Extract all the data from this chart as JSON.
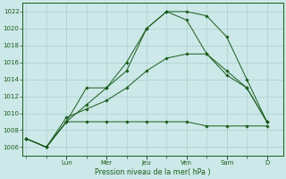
{
  "background_color": "#cce8e8",
  "grid_color": "#aacece",
  "line_color": "#1a5c1a",
  "marker_color": "#1a5c1a",
  "ylim": [
    1005.0,
    1023.0
  ],
  "yticks": [
    1006,
    1008,
    1010,
    1012,
    1014,
    1016,
    1018,
    1020,
    1022
  ],
  "xlabel": "Pression niveau de la mer( hPa )",
  "day_tick_positions": [
    2,
    4,
    6,
    8,
    10,
    12
  ],
  "day_labels": [
    "Lun",
    "Mer",
    "Jeu",
    "Ven",
    "Sam",
    "D"
  ],
  "series0_x": [
    0,
    1,
    2,
    3,
    4,
    5,
    6,
    7,
    8,
    9,
    10,
    11,
    12
  ],
  "series0_y": [
    1007.0,
    1006.0,
    1009.0,
    1013.0,
    1013.0,
    1016.0,
    1020.0,
    1022.0,
    1022.0,
    1021.5,
    1019.0,
    1014.0,
    1009.0
  ],
  "series1_x": [
    0,
    1,
    2,
    3,
    4,
    5,
    6,
    7,
    8,
    9,
    10,
    11,
    12
  ],
  "series1_y": [
    1007.0,
    1006.0,
    1009.0,
    1011.0,
    1013.0,
    1015.0,
    1020.0,
    1022.0,
    1021.0,
    1017.0,
    1015.0,
    1013.0,
    1009.0
  ],
  "series2_x": [
    0,
    1,
    2,
    3,
    4,
    5,
    6,
    7,
    8,
    9,
    10,
    11,
    12
  ],
  "series2_y": [
    1007.0,
    1006.0,
    1009.5,
    1010.5,
    1011.5,
    1013.0,
    1015.0,
    1016.5,
    1017.0,
    1017.0,
    1014.5,
    1013.0,
    1009.0
  ],
  "series3_x": [
    0,
    1,
    2,
    3,
    4,
    5,
    6,
    7,
    8,
    9,
    10,
    11,
    12
  ],
  "series3_y": [
    1007.0,
    1006.0,
    1009.0,
    1009.0,
    1009.0,
    1009.0,
    1009.0,
    1009.0,
    1009.0,
    1008.5,
    1008.5,
    1008.5,
    1008.5
  ]
}
